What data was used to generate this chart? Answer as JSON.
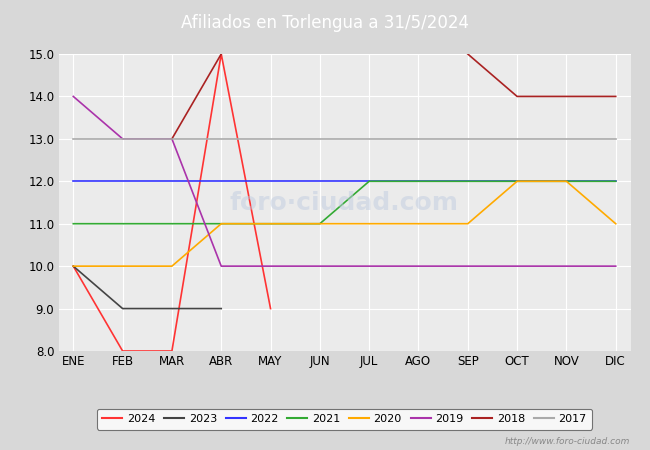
{
  "title": "Afiliados en Torlengua a 31/5/2024",
  "title_color": "white",
  "title_bg_color": "#4472C4",
  "months": [
    "ENE",
    "FEB",
    "MAR",
    "ABR",
    "MAY",
    "JUN",
    "JUL",
    "AGO",
    "SEP",
    "OCT",
    "NOV",
    "DIC"
  ],
  "ylim": [
    8.0,
    15.0
  ],
  "yticks": [
    8.0,
    9.0,
    10.0,
    11.0,
    12.0,
    13.0,
    14.0,
    15.0
  ],
  "series": {
    "2024": {
      "color": "#FF3333",
      "data": [
        10,
        8,
        8,
        15,
        9,
        null,
        null,
        null,
        null,
        null,
        null,
        null
      ]
    },
    "2023": {
      "color": "#444444",
      "data": [
        10,
        9,
        9,
        9,
        null,
        null,
        null,
        null,
        null,
        null,
        null,
        null
      ]
    },
    "2022": {
      "color": "#3333FF",
      "data": [
        12,
        12,
        12,
        12,
        12,
        12,
        12,
        12,
        12,
        12,
        12,
        12
      ]
    },
    "2021": {
      "color": "#33AA33",
      "data": [
        11,
        11,
        11,
        11,
        11,
        11,
        12,
        12,
        12,
        12,
        12,
        12
      ]
    },
    "2020": {
      "color": "#FFAA00",
      "data": [
        10,
        10,
        10,
        11,
        11,
        11,
        11,
        11,
        11,
        12,
        12,
        11
      ]
    },
    "2019": {
      "color": "#AA33AA",
      "data": [
        14,
        13,
        13,
        10,
        10,
        10,
        10,
        10,
        10,
        10,
        10,
        10
      ]
    },
    "2018": {
      "color": "#AA2222",
      "data": [
        null,
        null,
        13,
        15,
        null,
        null,
        null,
        null,
        15,
        14,
        14,
        14
      ]
    },
    "2017": {
      "color": "#AAAAAA",
      "data": [
        13,
        13,
        13,
        13,
        13,
        13,
        13,
        13,
        13,
        13,
        13,
        13
      ]
    }
  },
  "legend_order": [
    "2024",
    "2023",
    "2022",
    "2021",
    "2020",
    "2019",
    "2018",
    "2017"
  ],
  "watermark": "http://www.foro-ciudad.com",
  "bg_color": "#D8D8D8",
  "plot_bg_color": "#EBEBEB"
}
